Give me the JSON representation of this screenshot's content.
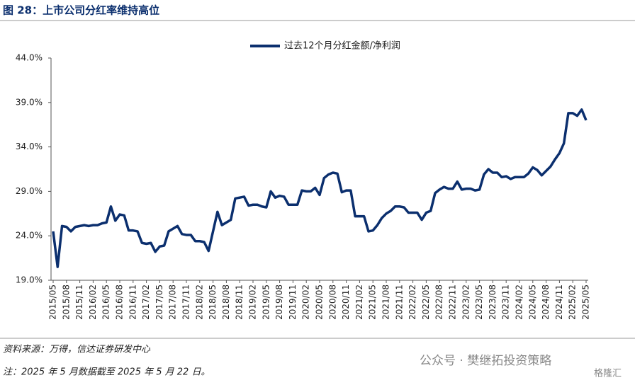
{
  "chart_data": {
    "type": "line",
    "title": "图 28：上市公司分红率维持高位",
    "source": "资料来源：万得，信达证券研发中心",
    "note": "注：2025 年 5 月数据截至 2025 年 5 月 22 日。",
    "watermark": "公众号 · 樊继拓投资策略",
    "watermark2": "格隆汇",
    "categories": [
      "2015/05",
      null,
      null,
      "2015/08",
      null,
      null,
      "2015/11",
      null,
      null,
      "2016/02",
      null,
      null,
      "2016/05",
      null,
      null,
      "2016/08",
      null,
      null,
      "2016/11",
      null,
      null,
      "2017/02",
      null,
      null,
      "2017/05",
      null,
      null,
      "2017/08",
      null,
      null,
      "2017/11",
      null,
      null,
      "2018/02",
      null,
      null,
      "2018/05",
      null,
      null,
      "2018/08",
      null,
      null,
      "2018/11",
      null,
      null,
      "2019/02",
      null,
      null,
      "2019/05",
      null,
      null,
      "2019/08",
      null,
      null,
      "2019/11",
      null,
      null,
      "2020/02",
      null,
      null,
      "2020/05",
      null,
      null,
      "2020/08",
      null,
      null,
      "2020/11",
      null,
      null,
      "2021/02",
      null,
      null,
      "2021/05",
      null,
      null,
      "2021/08",
      null,
      null,
      "2021/11",
      null,
      null,
      "2022/02",
      null,
      null,
      "2022/05",
      null,
      null,
      "2022/08",
      null,
      null,
      "2022/11",
      null,
      null,
      "2023/02",
      null,
      null,
      "2023/05",
      null,
      null,
      "2023/08",
      null,
      null,
      "2023/11",
      null,
      null,
      "2024/02",
      null,
      null,
      "2024/05",
      null,
      null,
      "2024/08",
      null,
      null,
      "2024/11",
      null,
      null,
      "2025/02",
      null,
      null,
      "2025/05"
    ],
    "series": [
      {
        "name": "过去12个月分红金额/净利润",
        "color": "#0b2f6e",
        "values": [
          24.5,
          20.5,
          25.1,
          25.0,
          24.5,
          25.0,
          25.1,
          25.2,
          25.1,
          25.2,
          25.2,
          25.4,
          25.5,
          27.3,
          25.7,
          26.4,
          26.3,
          24.6,
          24.6,
          24.5,
          23.2,
          23.1,
          23.2,
          22.2,
          22.8,
          22.9,
          24.5,
          24.8,
          25.1,
          24.2,
          24.1,
          24.1,
          23.4,
          23.4,
          23.3,
          22.3,
          24.5,
          26.7,
          25.2,
          25.5,
          25.8,
          28.2,
          28.3,
          28.4,
          27.4,
          27.5,
          27.5,
          27.3,
          27.2,
          29.0,
          28.3,
          28.5,
          28.4,
          27.5,
          27.5,
          27.5,
          29.1,
          29.0,
          29.0,
          29.4,
          28.6,
          30.5,
          30.9,
          31.1,
          31.0,
          28.9,
          29.1,
          29.1,
          26.2,
          26.2,
          26.2,
          24.5,
          24.6,
          25.2,
          26.0,
          26.5,
          26.8,
          27.3,
          27.3,
          27.2,
          26.6,
          26.6,
          26.6,
          25.8,
          26.6,
          26.8,
          28.8,
          29.2,
          29.5,
          29.3,
          29.3,
          30.1,
          29.2,
          29.3,
          29.3,
          29.1,
          29.2,
          30.9,
          31.5,
          31.1,
          31.1,
          30.6,
          30.7,
          30.4,
          30.6,
          30.6,
          30.6,
          31.0,
          31.7,
          31.4,
          30.8,
          31.3,
          31.8,
          32.6,
          33.3,
          34.4,
          37.8,
          37.8,
          37.5,
          38.2,
          37.0
        ]
      }
    ],
    "ylim": [
      19,
      44
    ],
    "yticks": [
      {
        "value": 19,
        "label": "19.0%"
      },
      {
        "value": 24,
        "label": "24.0%"
      },
      {
        "value": 29,
        "label": "29.0%"
      },
      {
        "value": 34,
        "label": "34.0%"
      },
      {
        "value": 39,
        "label": "39.0%"
      },
      {
        "value": 44,
        "label": "44.0%"
      }
    ],
    "grid": false,
    "legend": "top"
  }
}
